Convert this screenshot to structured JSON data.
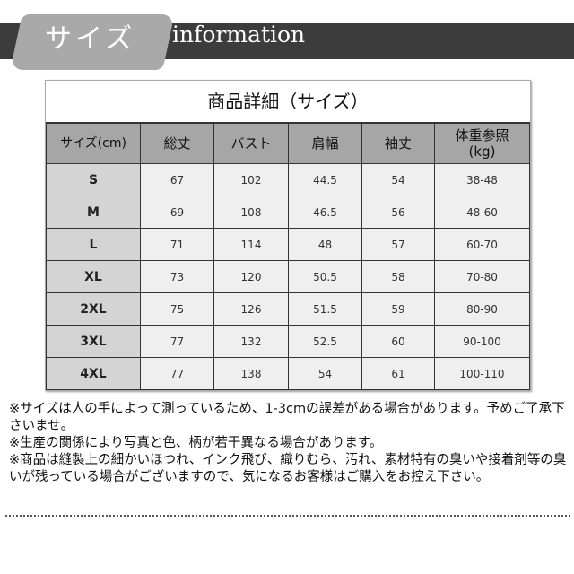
{
  "header": {
    "tab_label": "サイズ",
    "title": "information"
  },
  "table": {
    "title": "商品詳細（サイズ）",
    "columns": [
      "サイズ(cm)",
      "総丈",
      "バスト",
      "肩幅",
      "袖丈",
      "体重参照\n(kg)"
    ],
    "rows": [
      [
        "S",
        "67",
        "102",
        "44.5",
        "54",
        "38-48"
      ],
      [
        "M",
        "69",
        "108",
        "46.5",
        "56",
        "48-60"
      ],
      [
        "L",
        "71",
        "114",
        "48",
        "57",
        "60-70"
      ],
      [
        "XL",
        "73",
        "120",
        "50.5",
        "58",
        "70-80"
      ],
      [
        "2XL",
        "75",
        "126",
        "51.5",
        "59",
        "80-90"
      ],
      [
        "3XL",
        "77",
        "132",
        "52.5",
        "60",
        "90-100"
      ],
      [
        "4XL",
        "77",
        "138",
        "54",
        "61",
        "100-110"
      ]
    ]
  },
  "notes": [
    "※サイズは人の手によって測っているため、1-3cmの誤差がある場合があります。予めご了承下さいませ。",
    "※生産の関係により写真と色、柄が若干異なる場合があります。",
    "※商品は縫製上の細かいほつれ、インク飛び、織りむら、汚れ、素材特有の臭いや接着剤等の臭いが残っている場合がございますので、気になるお客様はご購入をお控え下さい。"
  ]
}
